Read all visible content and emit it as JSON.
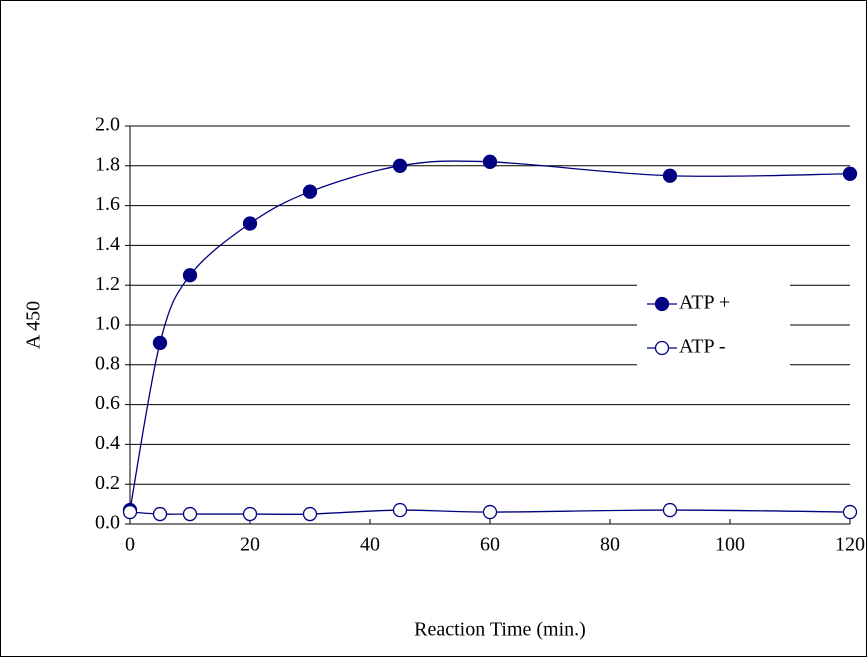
{
  "chart_data": {
    "type": "line",
    "x_label": "Reaction Time (min.)",
    "y_label": "A 450",
    "x": [
      0,
      5,
      10,
      20,
      30,
      45,
      60,
      90,
      120
    ],
    "series": [
      {
        "name": "ATP +",
        "color": "#000080",
        "marker": "filled",
        "values": [
          0.07,
          0.91,
          1.25,
          1.51,
          1.67,
          1.8,
          1.82,
          1.75,
          1.76
        ]
      },
      {
        "name": "ATP -",
        "color": "#000080",
        "marker": "open",
        "values": [
          0.06,
          0.05,
          0.05,
          0.05,
          0.05,
          0.07,
          0.06,
          0.07,
          0.06
        ]
      }
    ],
    "xlim": [
      0,
      120
    ],
    "xticks": [
      0,
      20,
      40,
      60,
      80,
      100,
      120
    ],
    "ylim": [
      0,
      2
    ],
    "yticks": [
      {
        "value": 0,
        "label": "0.0"
      },
      0.2,
      0.4,
      0.6,
      0.8,
      {
        "value": 1,
        "label": "1.0"
      },
      1.2,
      1.4,
      1.6,
      1.8,
      {
        "value": 2,
        "label": "2.0"
      }
    ],
    "grid": true,
    "legend": "right"
  }
}
